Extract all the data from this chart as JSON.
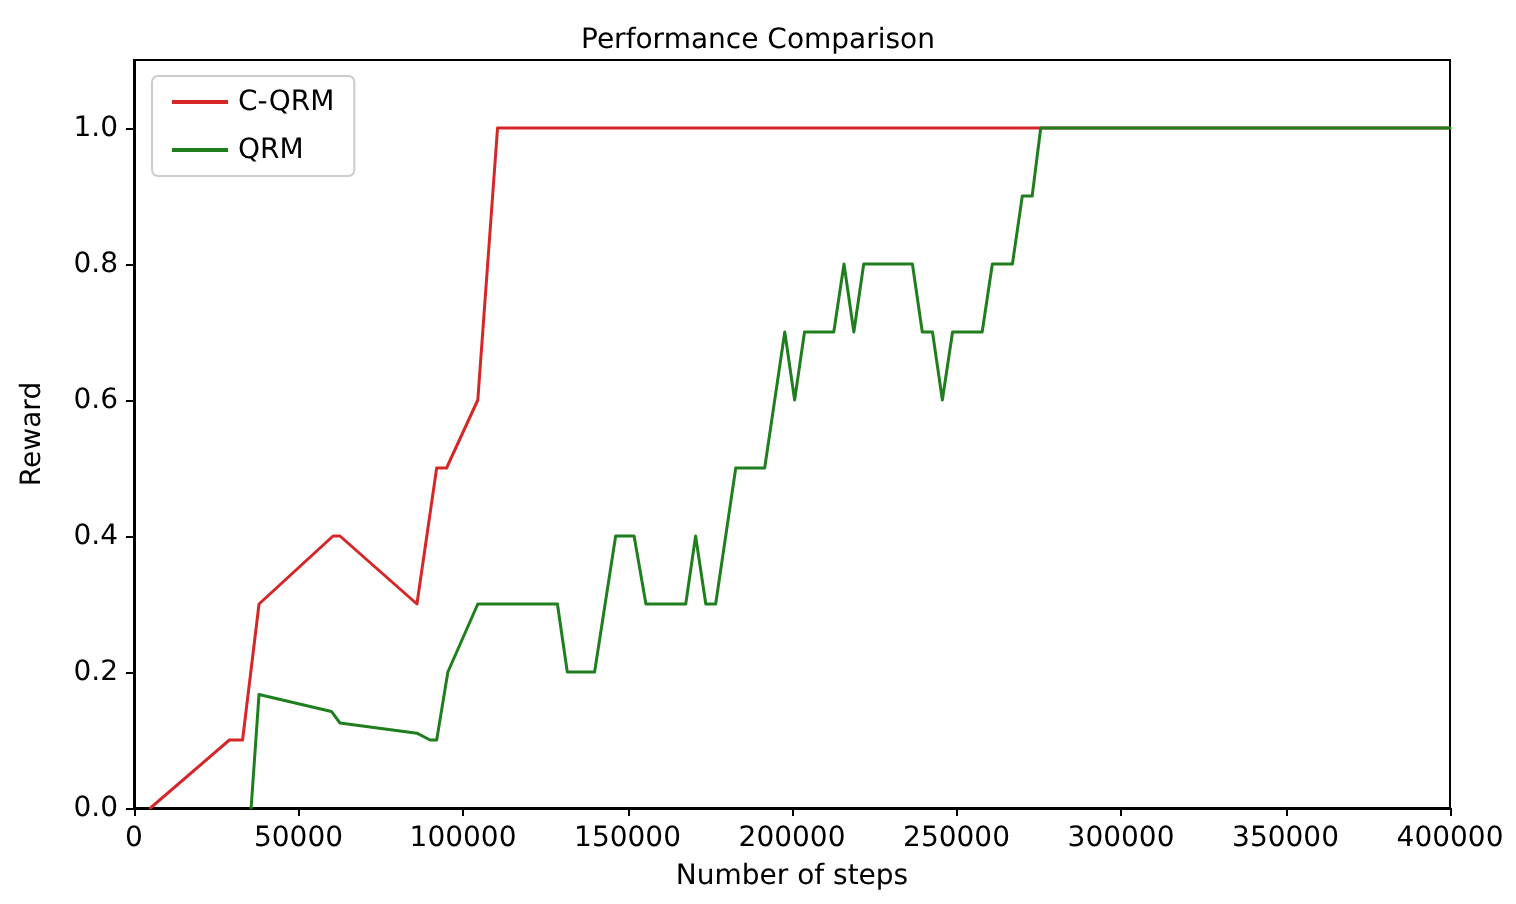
{
  "chart_data": {
    "type": "line",
    "title": "Performance Comparison",
    "xlabel": "Number of steps",
    "ylabel": "Reward",
    "xlim": [
      0,
      400000
    ],
    "xticks": [
      0,
      50000,
      100000,
      150000,
      200000,
      250000,
      300000,
      350000,
      400000
    ],
    "ylim": [
      0,
      1.1
    ],
    "yticks": [
      {
        "value": 0,
        "label": "0.0"
      },
      {
        "value": 0.2,
        "label": "0.2"
      },
      {
        "value": 0.4,
        "label": "0.4"
      },
      {
        "value": 0.6,
        "label": "0.6"
      },
      {
        "value": 0.8,
        "label": "0.8"
      },
      {
        "value": 1,
        "label": "1.0"
      }
    ],
    "grid": false,
    "legend": "top left",
    "marker": "none",
    "line_style": "solid",
    "series": [
      {
        "name": "C-QRM",
        "color": "#d62728",
        "x": [
          5000,
          29000,
          33000,
          38000,
          60500,
          62600,
          86000,
          92000,
          95000,
          104500,
          110500,
          400000
        ],
        "values": [
          0,
          0.1,
          0.1,
          0.3,
          0.4,
          0.4,
          0.3,
          0.5,
          0.5,
          0.6,
          1.0,
          1.0
        ]
      },
      {
        "name": "QRM",
        "color": "#1f7f1f",
        "x": [
          35600,
          38000,
          60000,
          62600,
          86000,
          90000,
          92000,
          95400,
          104500,
          128700,
          131700,
          140000,
          146400,
          152000,
          155600,
          167700,
          170700,
          173800,
          176800,
          182900,
          191700,
          197800,
          200800,
          203800,
          212700,
          215800,
          218800,
          221800,
          236600,
          239600,
          242700,
          245700,
          248800,
          257800,
          260900,
          267000,
          270000,
          273000,
          275600,
          400000
        ],
        "values": [
          0,
          0.167,
          0.142,
          0.125,
          0.11,
          0.1,
          0.1,
          0.2,
          0.3,
          0.3,
          0.2,
          0.2,
          0.4,
          0.4,
          0.3,
          0.3,
          0.4,
          0.3,
          0.3,
          0.5,
          0.5,
          0.7,
          0.6,
          0.7,
          0.7,
          0.8,
          0.7,
          0.8,
          0.8,
          0.7,
          0.7,
          0.6,
          0.7,
          0.7,
          0.8,
          0.8,
          0.9,
          0.9,
          1.0,
          1.0
        ]
      }
    ]
  }
}
